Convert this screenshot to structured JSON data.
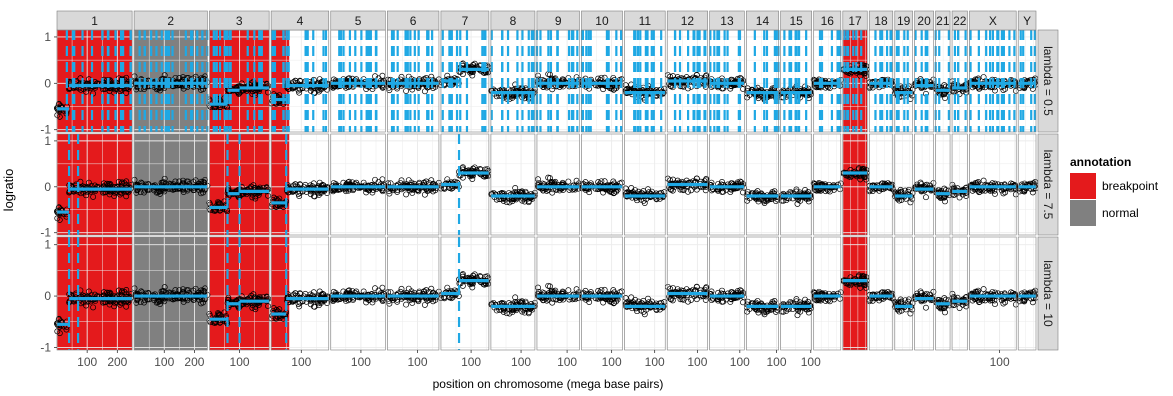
{
  "chart_data": {
    "type": "scatter",
    "title": "",
    "xlabel": "position on chromosome (mega base pairs)",
    "ylabel": "logratio",
    "ylim": [
      -1.05,
      1.15
    ],
    "y_ticks": [
      1,
      0,
      -1
    ],
    "grid": true,
    "chromosomes": [
      {
        "name": "1",
        "len": 249,
        "ticks": [
          100,
          200
        ]
      },
      {
        "name": "2",
        "len": 243,
        "ticks": [
          100,
          200
        ]
      },
      {
        "name": "3",
        "len": 198,
        "ticks": [
          100
        ]
      },
      {
        "name": "4",
        "len": 191,
        "ticks": [
          100
        ]
      },
      {
        "name": "5",
        "len": 181,
        "ticks": [
          100
        ]
      },
      {
        "name": "6",
        "len": 171,
        "ticks": [
          100
        ]
      },
      {
        "name": "7",
        "len": 159,
        "ticks": [
          100
        ]
      },
      {
        "name": "8",
        "len": 146,
        "ticks": [
          100
        ]
      },
      {
        "name": "9",
        "len": 141,
        "ticks": [
          100
        ]
      },
      {
        "name": "10",
        "len": 136,
        "ticks": [
          100
        ]
      },
      {
        "name": "11",
        "len": 135,
        "ticks": [
          100
        ]
      },
      {
        "name": "12",
        "len": 134,
        "ticks": [
          100
        ]
      },
      {
        "name": "13",
        "len": 115,
        "ticks": [
          100
        ]
      },
      {
        "name": "14",
        "len": 107,
        "ticks": [
          100
        ]
      },
      {
        "name": "15",
        "len": 103,
        "ticks": [
          100
        ]
      },
      {
        "name": "16",
        "len": 90,
        "ticks": []
      },
      {
        "name": "17",
        "len": 81,
        "ticks": []
      },
      {
        "name": "18",
        "len": 78,
        "ticks": []
      },
      {
        "name": "19",
        "len": 59,
        "ticks": []
      },
      {
        "name": "20",
        "len": 63,
        "ticks": []
      },
      {
        "name": "21",
        "len": 48,
        "ticks": []
      },
      {
        "name": "22",
        "len": 51,
        "ticks": []
      },
      {
        "name": "X",
        "len": 155,
        "ticks": [
          100
        ]
      },
      {
        "name": "Y",
        "len": 59,
        "ticks": []
      }
    ],
    "facets": [
      "lambda = 0.5",
      "lambda = 7.5",
      "lambda = 10"
    ],
    "annotation_regions": [
      {
        "chrom": "1",
        "start": 0,
        "end": 249,
        "label": "breakpoint"
      },
      {
        "chrom": "2",
        "start": 0,
        "end": 243,
        "label": "normal"
      },
      {
        "chrom": "3",
        "start": 0,
        "end": 198,
        "label": "breakpoint"
      },
      {
        "chrom": "4",
        "start": 0,
        "end": 60,
        "label": "breakpoint"
      },
      {
        "chrom": "17",
        "start": 0,
        "end": 81,
        "label": "breakpoint"
      }
    ],
    "segments": {
      "1": [
        [
          0,
          40,
          -0.55
        ],
        [
          40,
          70,
          -0.05
        ],
        [
          70,
          249,
          -0.05
        ]
      ],
      "2": [
        [
          0,
          243,
          0.0
        ]
      ],
      "3": [
        [
          0,
          60,
          -0.45
        ],
        [
          60,
          100,
          -0.15
        ],
        [
          100,
          198,
          -0.1
        ]
      ],
      "4": [
        [
          0,
          50,
          -0.35
        ],
        [
          50,
          191,
          -0.05
        ]
      ],
      "5": [
        [
          0,
          181,
          0.0
        ]
      ],
      "6": [
        [
          0,
          171,
          0.0
        ]
      ],
      "7": [
        [
          0,
          60,
          0.05
        ],
        [
          60,
          159,
          0.3
        ]
      ],
      "8": [
        [
          0,
          146,
          -0.2
        ]
      ],
      "9": [
        [
          0,
          141,
          0.0
        ]
      ],
      "10": [
        [
          0,
          136,
          0.0
        ]
      ],
      "11": [
        [
          0,
          135,
          -0.2
        ]
      ],
      "12": [
        [
          0,
          134,
          0.05
        ]
      ],
      "13": [
        [
          0,
          115,
          0.0
        ]
      ],
      "14": [
        [
          0,
          107,
          -0.2
        ]
      ],
      "15": [
        [
          0,
          103,
          -0.2
        ]
      ],
      "16": [
        [
          0,
          90,
          0.0
        ]
      ],
      "17": [
        [
          0,
          81,
          0.3
        ]
      ],
      "18": [
        [
          0,
          78,
          0.0
        ]
      ],
      "19": [
        [
          0,
          59,
          -0.2
        ]
      ],
      "20": [
        [
          0,
          63,
          -0.05
        ]
      ],
      "21": [
        [
          0,
          48,
          -0.15
        ]
      ],
      "22": [
        [
          0,
          51,
          -0.1
        ]
      ],
      "X": [
        [
          0,
          155,
          0.0
        ]
      ],
      "Y": [
        [
          0,
          59,
          0.0
        ]
      ]
    },
    "legend": {
      "title": "annotation",
      "position": "right",
      "items": [
        {
          "label": "breakpoint",
          "color": "#e41a1c"
        },
        {
          "label": "normal",
          "color": "#808080"
        }
      ]
    },
    "colors": {
      "segment": "#1fa8e4",
      "breakpoint": "#e41a1c",
      "normal": "#808080",
      "strip": "#d9d9d9",
      "points": "#000000"
    }
  }
}
